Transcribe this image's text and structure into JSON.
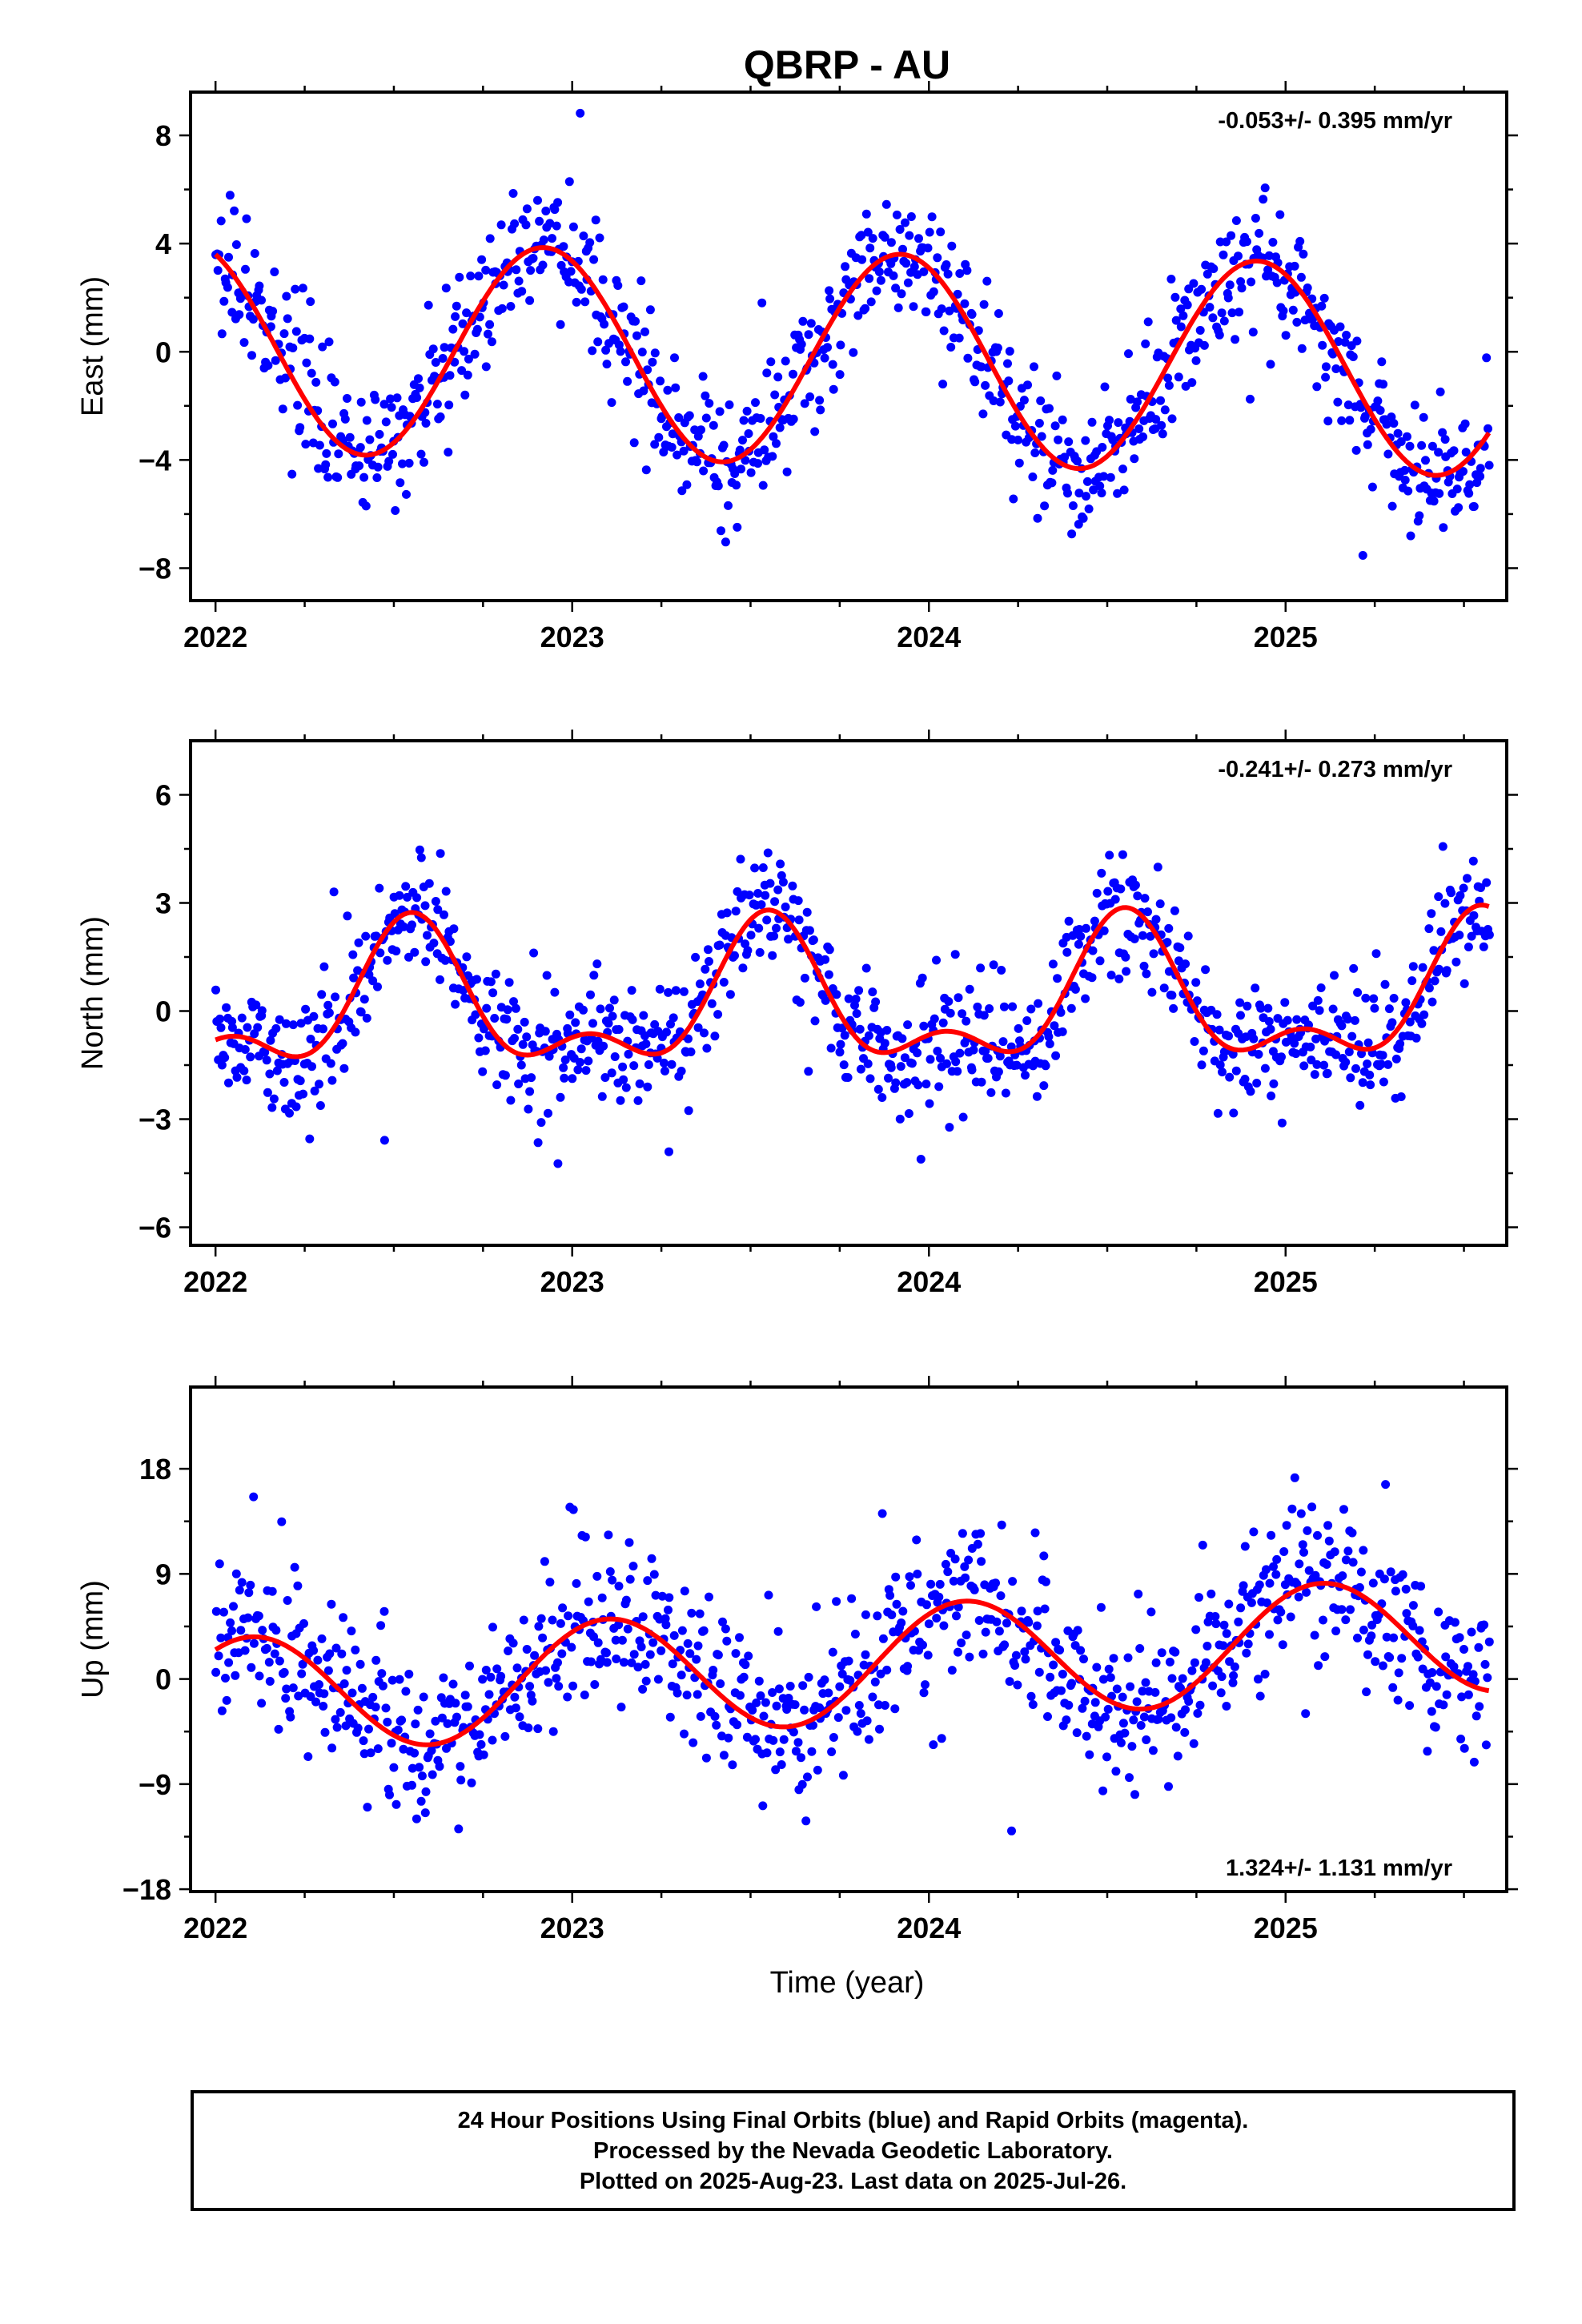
{
  "title": "QBRP - AU",
  "xlabel": "Time (year)",
  "colors": {
    "data": "#0000ff",
    "fit": "#ff0000",
    "frame": "#000000"
  },
  "caption": {
    "line1": "24 Hour Positions Using Final Orbits (blue) and Rapid Orbits (magenta).",
    "line2": "Processed by the Nevada Geodetic Laboratory.",
    "line3": "Plotted on 2025-Aug-23. Last data on 2025-Jul-26."
  },
  "chart_data": [
    {
      "type": "scatter",
      "id": "east",
      "ylabel": "East (mm)",
      "rate": "-0.053+/- 0.395 mm/yr",
      "rate_position": "top-right",
      "xlim": [
        2021.93,
        2025.62
      ],
      "ylim": [
        -9.2,
        9.6
      ],
      "xticks": [
        2022,
        2023,
        2024,
        2025
      ],
      "yticks": [
        8,
        4,
        0,
        -4,
        -8
      ],
      "yticks_minor": [
        6,
        2,
        -2,
        -6
      ],
      "fit": {
        "name": "",
        "start": 2022.0,
        "end": 2025.57,
        "amplitude": 3.9,
        "peak": 2022.92,
        "offset": 0.4,
        "trend": -0.053,
        "semi_amplitude": 0.0,
        "semi_peak": 2022.0,
        "endpoints": [
          3.6,
          -3.0
        ]
      },
      "scatter": {
        "count": 950,
        "noise": 1.2,
        "outliers": 10
      }
    },
    {
      "type": "scatter",
      "id": "north",
      "ylabel": "North (mm)",
      "rate": "-0.241+/- 0.273 mm/yr",
      "rate_position": "top-right",
      "xlim": [
        2021.93,
        2025.62
      ],
      "ylim": [
        -6.5,
        7.5
      ],
      "xticks": [
        2022,
        2023,
        2024,
        2025
      ],
      "yticks": [
        6,
        3,
        0,
        -3,
        -6
      ],
      "yticks_minor": [
        4.5,
        1.5,
        -1.5,
        -4.5
      ],
      "fit": {
        "name": "",
        "start": 2022.0,
        "end": 2025.57,
        "amplitude": 1.7,
        "peak": 2022.55,
        "offset": 0.7,
        "trend": -0.241,
        "semi_amplitude": 0.95,
        "semi_peak": 2022.55,
        "endpoints": [
          -0.8,
          2.9
        ]
      },
      "scatter": {
        "count": 950,
        "noise": 0.85,
        "outliers": 8
      }
    },
    {
      "type": "scatter",
      "id": "up",
      "ylabel": "Up (mm)",
      "rate": "1.324+/- 1.131 mm/yr",
      "rate_position": "bottom-right",
      "xlim": [
        2021.93,
        2025.62
      ],
      "ylim": [
        -18.2,
        25.0
      ],
      "xticks": [
        2022,
        2023,
        2024,
        2025
      ],
      "yticks": [
        18,
        9,
        0,
        -9,
        -18
      ],
      "yticks_minor": [
        13.5,
        4.5,
        -4.5,
        -13.5
      ],
      "fit": {
        "name": "",
        "start": 2022.0,
        "end": 2025.57,
        "amplitude": 5.0,
        "peak": 2023.1,
        "offset": -1.6,
        "trend": 1.324,
        "semi_amplitude": 0.0,
        "semi_peak": 2022.0,
        "endpoints": [
          2.5,
          -1.0
        ]
      },
      "scatter": {
        "count": 950,
        "noise": 3.4,
        "outliers": 10
      }
    }
  ]
}
